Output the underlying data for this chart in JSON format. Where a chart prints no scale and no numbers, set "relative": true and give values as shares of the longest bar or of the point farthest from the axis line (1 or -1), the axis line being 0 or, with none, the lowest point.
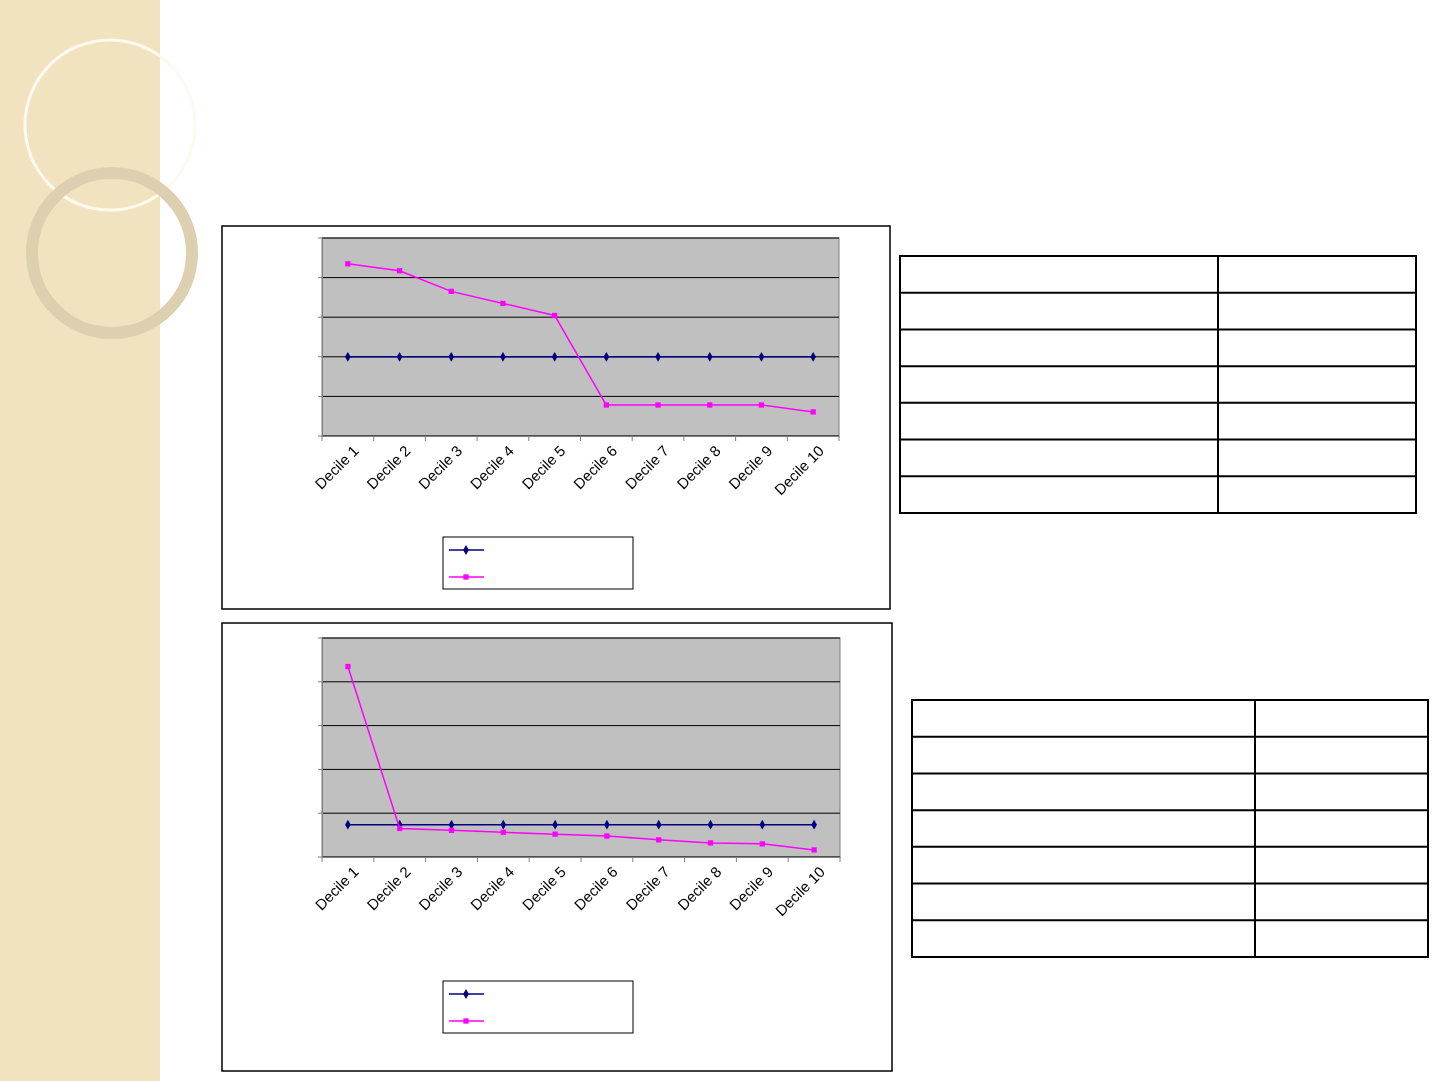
{
  "chart_data": [
    {
      "type": "line",
      "relative": true,
      "categories": [
        "Decile 1",
        "Decile 2",
        "Decile 3",
        "Decile 4",
        "Decile 5",
        "Decile 6",
        "Decile 7",
        "Decile 8",
        "Decile 9",
        "Decile 10"
      ],
      "grid": true,
      "series": [
        {
          "color": "#000080",
          "marker": "diamond",
          "values": [
            0.46,
            0.46,
            0.46,
            0.46,
            0.46,
            0.46,
            0.46,
            0.46,
            0.46,
            0.46
          ]
        },
        {
          "color": "#ff00ff",
          "marker": "square",
          "values": [
            1,
            0.96,
            0.84,
            0.77,
            0.7,
            0.18,
            0.18,
            0.18,
            0.18,
            0.14
          ]
        }
      ]
    },
    {
      "type": "line",
      "relative": true,
      "categories": [
        "Decile 1",
        "Decile 2",
        "Decile 3",
        "Decile 4",
        "Decile 5",
        "Decile 6",
        "Decile 7",
        "Decile 8",
        "Decile 9",
        "Decile 10"
      ],
      "grid": true,
      "series": [
        {
          "color": "#000080",
          "marker": "diamond",
          "values": [
            0.17,
            0.17,
            0.17,
            0.17,
            0.17,
            0.17,
            0.17,
            0.17,
            0.17,
            0.17
          ]
        },
        {
          "color": "#ff00ff",
          "marker": "square",
          "values": [
            1,
            0.15,
            0.14,
            0.13,
            0.12,
            0.11,
            0.09,
            0.074,
            0.069,
            0.037
          ]
        }
      ]
    }
  ]
}
